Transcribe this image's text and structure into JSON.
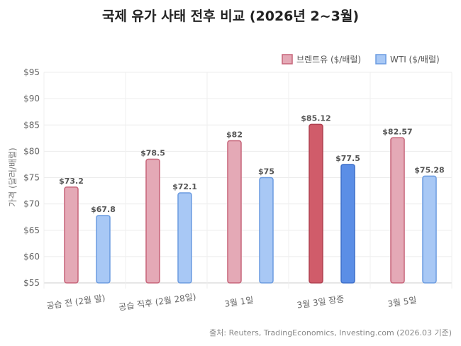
{
  "chart_data": {
    "type": "bar",
    "title": "국제 유가 사태 전후 비교 (2026년 2~3월)",
    "xlabel": "",
    "ylabel": "가격 (달러/배럴)",
    "ylim": [
      55,
      95
    ],
    "yticks": [
      55,
      60,
      65,
      70,
      75,
      80,
      85,
      90,
      95
    ],
    "ytick_labels": [
      "$55",
      "$60",
      "$65",
      "$70",
      "$75",
      "$80",
      "$85",
      "$90",
      "$95"
    ],
    "categories": [
      "공습 전 (2월 말)",
      "공습 직후 (2월 28일)",
      "3월 1일",
      "3월 3일 장중",
      "3월 5일"
    ],
    "highlight_index": 3,
    "legend_position": "top-right",
    "grid": true,
    "series": [
      {
        "name": "브렌트유 ($/배럴)",
        "values": [
          73.2,
          78.5,
          82,
          85.12,
          82.57
        ],
        "labels": [
          "$73.2",
          "$78.5",
          "$82",
          "$85.12",
          "$82.57"
        ],
        "color": "#e4a9b6",
        "border": "#c66479",
        "highlight_color": "#d05c6a",
        "highlight_border": "#b04050"
      },
      {
        "name": "WTI ($/배럴)",
        "values": [
          67.8,
          72.1,
          75,
          77.5,
          75.28
        ],
        "labels": [
          "$67.8",
          "$72.1",
          "$75",
          "$77.5",
          "$75.28"
        ],
        "color": "#a8c8f5",
        "border": "#6b9be0",
        "highlight_color": "#5b8ee6",
        "highlight_border": "#3d6fc9"
      }
    ],
    "source": "출처: Reuters, TradingEconomics, Investing.com (2026.03 기준)"
  }
}
